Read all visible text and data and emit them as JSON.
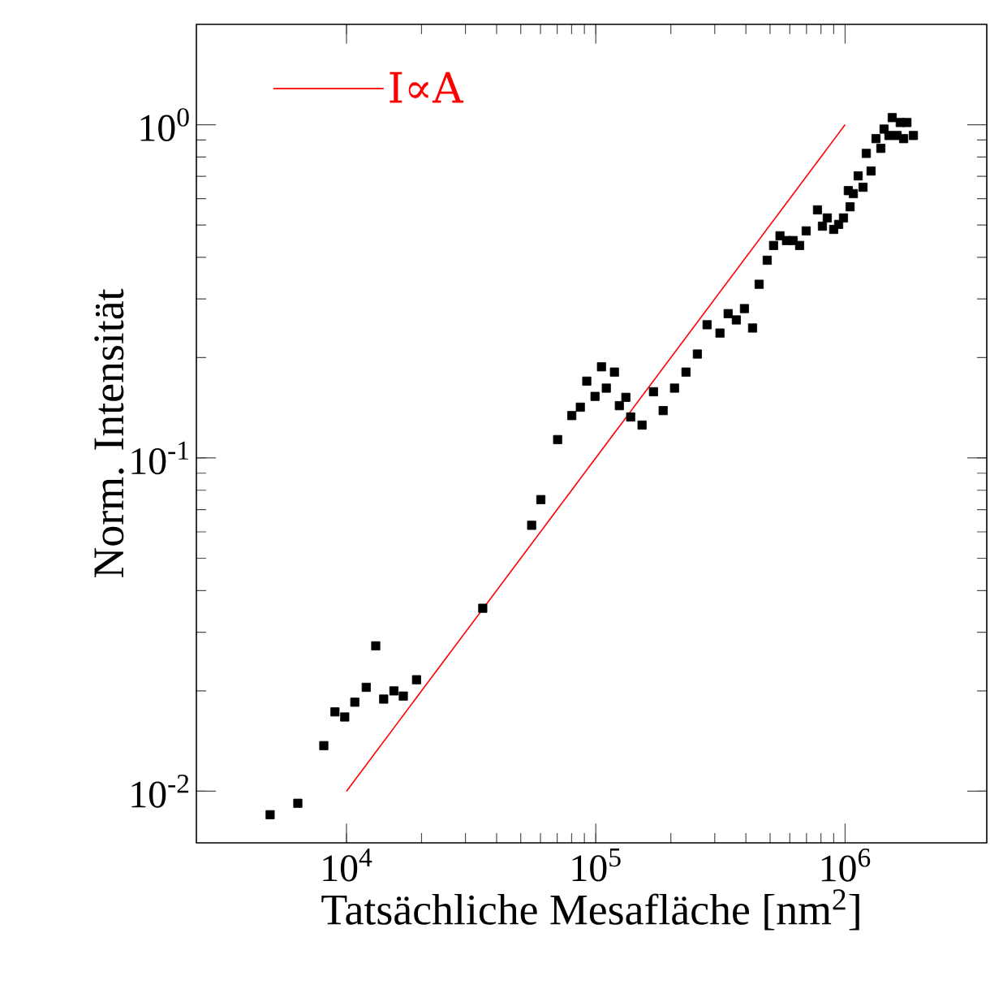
{
  "chart_data": {
    "type": "scatter",
    "xlabel": "Tatsächliche Mesafläche [nm$^{2}$]",
    "ylabel": "Norm. Intensität",
    "log": "xy",
    "grid": false,
    "legend": "top left",
    "xlim": [
      2500,
      3700000
    ],
    "ylim": [
      0.007,
      2
    ],
    "xticks": [
      {
        "value": 10000,
        "label": "10$^{4}$"
      },
      {
        "value": 100000,
        "label": "10$^{5}$"
      },
      {
        "value": 1000000,
        "label": "10$^{6}$"
      }
    ],
    "yticks": [
      {
        "value": 0.01,
        "label": "10$^{-2}$"
      },
      {
        "value": 0.1,
        "label": "10$^{-1}$"
      },
      {
        "value": 1,
        "label": "10$^{0}$"
      }
    ],
    "series": [
      {
        "color": "#000000",
        "marker": "square",
        "x": [
          4940,
          6380,
          8110,
          8990,
          9840,
          10800,
          12000,
          13100,
          14100,
          15500,
          16900,
          19100,
          35200,
          55300,
          60200,
          70300,
          80100,
          86700,
          92000,
          99300,
          105400,
          110200,
          118800,
          124300,
          132000,
          138000,
          153300,
          170400,
          186300,
          206900,
          230000,
          255500,
          279500,
          314800,
          339500,
          366200,
          394700,
          425500,
          452000,
          487000,
          516500,
          548000,
          582000,
          619000,
          657000,
          698000,
          775000,
          811000,
          848000,
          900000,
          942000,
          985000,
          1030000,
          1047000,
          1079000,
          1128000,
          1180000,
          1216000,
          1271000,
          1330000,
          1391000,
          1433000,
          1499000,
          1545000,
          1616000,
          1664000,
          1717000,
          1770000,
          1879000
        ],
        "values": [
          0.0085,
          0.0092,
          0.0137,
          0.0173,
          0.0167,
          0.0185,
          0.0205,
          0.0273,
          0.0189,
          0.02,
          0.0193,
          0.0216,
          0.0354,
          0.0628,
          0.075,
          0.1135,
          0.134,
          0.142,
          0.17,
          0.153,
          0.1877,
          0.162,
          0.181,
          0.1435,
          0.152,
          0.1327,
          0.1255,
          0.158,
          0.1387,
          0.162,
          0.181,
          0.205,
          0.251,
          0.237,
          0.271,
          0.2595,
          0.2806,
          0.2454,
          0.332,
          0.392,
          0.434,
          0.464,
          0.449,
          0.449,
          0.434,
          0.48,
          0.555,
          0.496,
          0.525,
          0.485,
          0.502,
          0.525,
          0.634,
          0.567,
          0.621,
          0.702,
          0.649,
          0.82,
          0.726,
          0.908,
          0.849,
          0.97,
          0.928,
          1.05,
          0.928,
          1.015,
          0.908,
          1.015,
          0.928
        ]
      },
      {
        "type": "line",
        "name": "I∝A",
        "color": "#ff0000",
        "marker": "none",
        "x": [
          10000,
          1000000
        ],
        "values": [
          0.01,
          1
        ]
      }
    ]
  }
}
